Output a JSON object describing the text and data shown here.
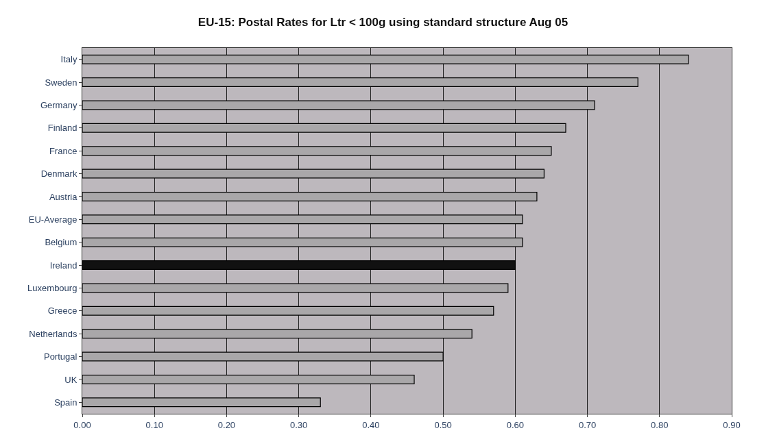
{
  "chart_data": {
    "type": "bar",
    "orientation": "horizontal",
    "title": "EU-15: Postal Rates for Ltr < 100g using standard structure Aug 05",
    "categories": [
      "Italy",
      "Sweden",
      "Germany",
      "Finland",
      "France",
      "Denmark",
      "Austria",
      "EU-Average",
      "Belgium",
      "Ireland",
      "Luxembourg",
      "Greece",
      "Netherlands",
      "Portugal",
      "UK",
      "Spain"
    ],
    "values": [
      0.84,
      0.77,
      0.71,
      0.67,
      0.65,
      0.64,
      0.63,
      0.61,
      0.61,
      0.6,
      0.59,
      0.57,
      0.54,
      0.5,
      0.46,
      0.33
    ],
    "colors": [
      "#a9a7a9",
      "#a9a7a9",
      "#a9a7a9",
      "#a9a7a9",
      "#a9a7a9",
      "#a9a7a9",
      "#a9a7a9",
      "#a9a7a9",
      "#a9a7a9",
      "#111111",
      "#a9a7a9",
      "#a9a7a9",
      "#a9a7a9",
      "#a9a7a9",
      "#a9a7a9",
      "#a9a7a9"
    ],
    "xlim": [
      0,
      0.9
    ],
    "xticks": [
      {
        "value": 0,
        "label": "0.00"
      },
      {
        "value": 0.1,
        "label": "0.10"
      },
      {
        "value": 0.2,
        "label": "0.20"
      },
      {
        "value": 0.3,
        "label": "0.30"
      },
      {
        "value": 0.4,
        "label": "0.40"
      },
      {
        "value": 0.5,
        "label": "0.50"
      },
      {
        "value": 0.6,
        "label": "0.60"
      },
      {
        "value": 0.7,
        "label": "0.70"
      },
      {
        "value": 0.8,
        "label": "0.80"
      },
      {
        "value": 0.9,
        "label": "0.90"
      }
    ],
    "grid": "x"
  }
}
